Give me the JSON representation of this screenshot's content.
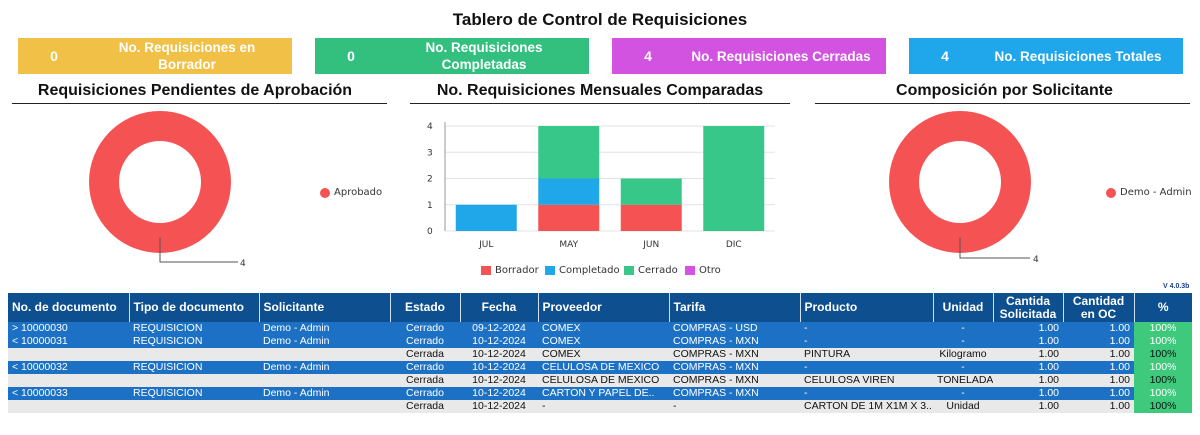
{
  "title": "Tablero de Control de Requisiciones",
  "kpis": [
    {
      "value": "0",
      "label": "No. Requisiciones en Borrador",
      "color": "#f0c146"
    },
    {
      "value": "0",
      "label": "No. Requisiciones Completadas",
      "color": "#33c07f"
    },
    {
      "value": "4",
      "label": "No. Requisiciones Cerradas",
      "color": "#d253e0"
    },
    {
      "value": "4",
      "label": "No. Requisiciones Totales",
      "color": "#20a6ea"
    }
  ],
  "sections": {
    "pending": "Requisiciones Pendientes de Aprobación",
    "monthly": "No. Requisiciones Mensuales Comparadas",
    "composition": "Composición por Solicitante"
  },
  "chart_data": [
    {
      "type": "pie",
      "title": "Requisiciones Pendientes de Aprobación",
      "labels": [
        "Aprobado"
      ],
      "values": [
        4
      ],
      "colors": [
        "#f55353"
      ],
      "data_label": "4",
      "legend": "right"
    },
    {
      "type": "bar",
      "stacked": true,
      "title": "No. Requisiciones Mensuales Comparadas",
      "categories": [
        "JUL",
        "MAY",
        "JUN",
        "DIC"
      ],
      "series": [
        {
          "name": "Borrador",
          "values": [
            0,
            1,
            1,
            0
          ],
          "color": "#f55353"
        },
        {
          "name": "Completado",
          "values": [
            1,
            1,
            0,
            0
          ],
          "color": "#1fa7ea"
        },
        {
          "name": "Cerrado",
          "values": [
            0,
            2,
            1,
            4
          ],
          "color": "#37c889"
        },
        {
          "name": "Otro",
          "values": [
            0,
            0,
            0,
            0
          ],
          "color": "#d552e3"
        }
      ],
      "yticks": [
        "0",
        "1",
        "2",
        "3",
        "4"
      ],
      "ylim": [
        0,
        4
      ],
      "grid": true,
      "legend": "bottom"
    },
    {
      "type": "pie",
      "title": "Composición por Solicitante",
      "labels": [
        "Demo - Admin"
      ],
      "values": [
        4
      ],
      "colors": [
        "#f55353"
      ],
      "data_label": "4",
      "legend": "right"
    }
  ],
  "version": "V 4.0.3b",
  "table": {
    "headers": [
      "No. de documento",
      "Tipo de documento",
      "Solicitante",
      "Estado",
      "Fecha",
      "Proveedor",
      "Tarifa",
      "Producto",
      "Unidad",
      "Cantida Solicitada",
      "Cantidad en OC",
      "%"
    ],
    "rows": [
      {
        "kind": "main",
        "cells": [
          "> 10000030",
          "REQUISICION",
          "Demo - Admin",
          "Cerrado",
          "09-12-2024",
          "COMEX",
          "COMPRAS - USD",
          "-",
          "-",
          "1.00",
          "1.00",
          "100%"
        ]
      },
      {
        "kind": "main",
        "cells": [
          "< 10000031",
          "REQUISICION",
          "Demo - Admin",
          "Cerrado",
          "10-12-2024",
          "COMEX",
          "COMPRAS - MXN",
          "-",
          "-",
          "1.00",
          "1.00",
          "100%"
        ]
      },
      {
        "kind": "sub",
        "cells": [
          "",
          "",
          "",
          "Cerrada",
          "10-12-2024",
          "COMEX",
          "COMPRAS - MXN",
          "PINTURA",
          "Kilogramo",
          "1.00",
          "1.00",
          "100%"
        ]
      },
      {
        "kind": "main",
        "cells": [
          "< 10000032",
          "REQUISICION",
          "Demo - Admin",
          "Cerrado",
          "10-12-2024",
          "CELULOSA DE MEXICO",
          "COMPRAS - MXN",
          "-",
          "-",
          "1.00",
          "1.00",
          "100%"
        ]
      },
      {
        "kind": "sub",
        "cells": [
          "",
          "",
          "",
          "Cerrada",
          "10-12-2024",
          "CELULOSA DE MEXICO",
          "COMPRAS - MXN",
          "CELULOSA VIREN",
          "TONELADA",
          "1.00",
          "1.00",
          "100%"
        ]
      },
      {
        "kind": "main",
        "cells": [
          "< 10000033",
          "REQUISICION",
          "Demo - Admin",
          "Cerrado",
          "10-12-2024",
          "CARTON Y PAPEL DE..",
          "COMPRAS - MXN",
          "-",
          "-",
          "1.00",
          "1.00",
          "100%"
        ]
      },
      {
        "kind": "sub",
        "cells": [
          "",
          "",
          "",
          "Cerrada",
          "10-12-2024",
          "-",
          "-",
          "CARTON DE 1M X1M X 3..",
          "Unidad",
          "1.00",
          "1.00",
          "100%"
        ]
      }
    ]
  }
}
